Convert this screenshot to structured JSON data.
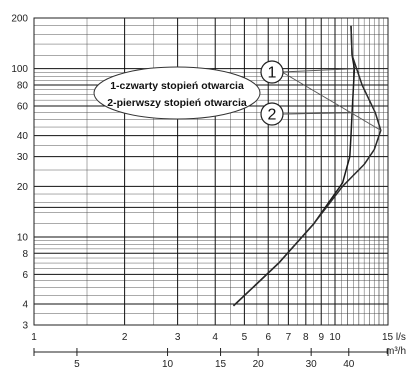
{
  "chart_data": {
    "type": "line",
    "title": "",
    "xscale": "log",
    "yscale": "log",
    "xlim": [
      1,
      15
    ],
    "ylim": [
      3,
      200
    ],
    "x_unit": "l/s",
    "x2_unit": "m³/h",
    "x_ticks": [
      1,
      2,
      3,
      4,
      5,
      6,
      7,
      8,
      9,
      10,
      15
    ],
    "x_tick_labels": [
      "1",
      "2",
      "3",
      "4",
      "5",
      "6",
      "7",
      "8",
      "9",
      "10",
      "15 l/s"
    ],
    "x2_ticks": [
      5,
      10,
      15,
      20,
      30,
      40
    ],
    "x2_tick_labels": [
      "5",
      "10",
      "15",
      "20",
      "30",
      "40"
    ],
    "y_ticks": [
      3,
      4,
      6,
      8,
      10,
      20,
      30,
      40,
      60,
      80,
      100,
      200
    ],
    "y_tick_labels": [
      "3",
      "4",
      "6",
      "8",
      "10",
      "20",
      "30",
      "40",
      "60",
      "80",
      "100",
      "200"
    ],
    "grid": true,
    "legend": {
      "placement": "top-center",
      "entries": [
        "1-czwarty stopień otwarcia",
        "2-pierwszy stopień otwarcia"
      ]
    },
    "callouts": [
      {
        "label": "1",
        "series": 0
      },
      {
        "label": "2",
        "series": 1
      }
    ],
    "series": [
      {
        "name": "1",
        "x": [
          4.6,
          6.5,
          8.5,
          10.6,
          11.2,
          11.3,
          11.4,
          11.6,
          11.4,
          11.3
        ],
        "y": [
          3.9,
          7,
          12,
          21,
          30,
          40,
          55,
          100,
          120,
          180
        ]
      },
      {
        "name": "2",
        "x": [
          4.6,
          6.5,
          8.5,
          10.6,
          12.5,
          13.5,
          14.2,
          13.6,
          12.3,
          11.4,
          11.3
        ],
        "y": [
          3.9,
          7,
          12,
          20,
          27,
          33,
          43,
          55,
          80,
          120,
          180
        ]
      }
    ]
  }
}
